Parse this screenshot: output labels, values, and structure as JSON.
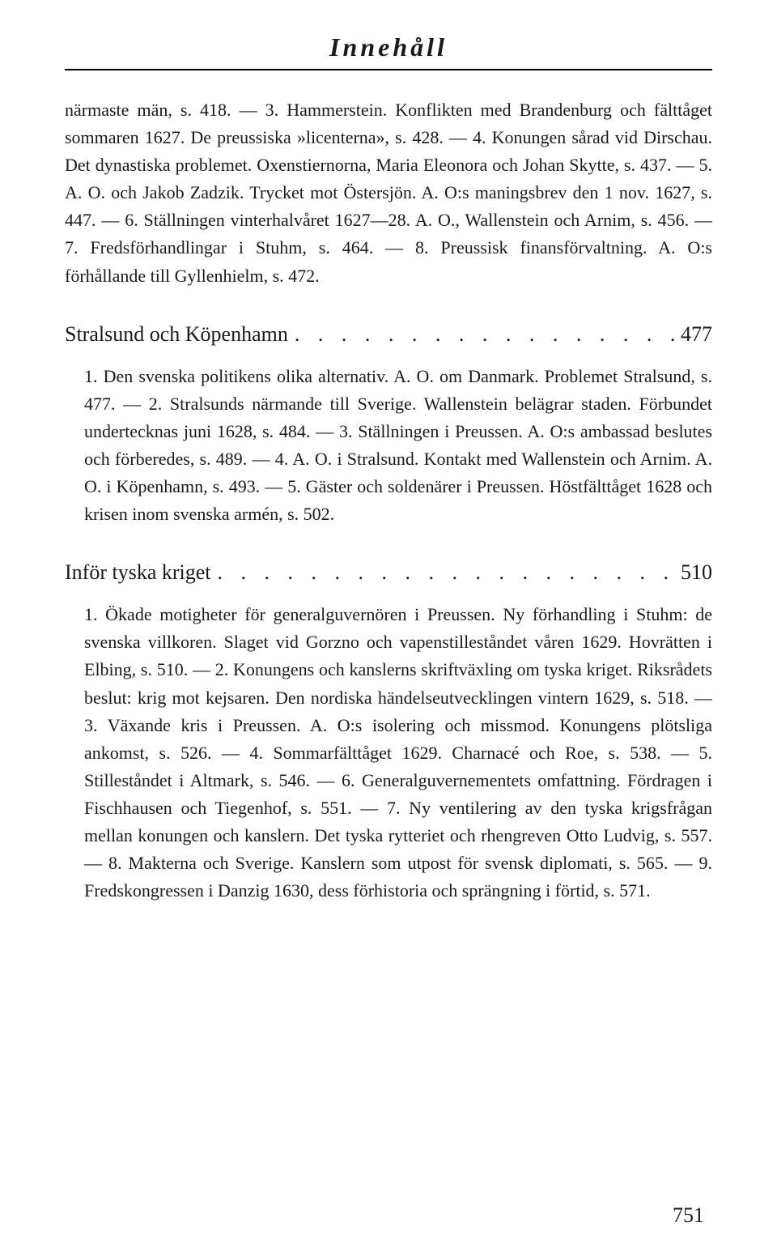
{
  "page_title": "Innehåll",
  "page_number": "751",
  "sections": {
    "first_block": "närmaste män, s. 418. — 3. Hammerstein. Konflikten med Brandenburg och fälttåget sommaren 1627. De preussiska »licenterna», s. 428. — 4. Konungen sårad vid Dirschau. Det dynastiska problemet. Oxenstiernorna, Maria Eleonora och Johan Skytte, s. 437. — 5. A. O. och Jakob Zadzik. Trycket mot Östersjön. A. O:s maningsbrev den 1 nov. 1627, s. 447. — 6. Ställningen vinterhalvåret 1627—28. A. O., Wallenstein och Arnim, s. 456. — 7. Fredsförhandlingar i Stuhm, s. 464. — 8. Preussisk finansförvaltning. A. O:s förhållande till Gyllenhielm, s. 472.",
    "stralsund": {
      "title": "Stralsund och Köpenhamn",
      "page": "477",
      "body": "1. Den svenska politikens olika alternativ. A. O. om Danmark. Problemet Stralsund, s. 477. — 2. Stralsunds närmande till Sverige. Wallenstein belägrar staden. Förbundet undertecknas juni 1628, s. 484. — 3. Ställningen i Preussen. A. O:s ambassad beslutes och förberedes, s. 489. — 4. A. O. i Stralsund. Kontakt med Wallenstein och Arnim. A. O. i Köpenhamn, s. 493. — 5. Gäster och soldenärer i Preussen. Höstfälttåget 1628 och krisen inom svenska armén, s. 502."
    },
    "infor": {
      "title": "Inför tyska kriget",
      "page": "510",
      "body": "1. Ökade motigheter för generalguvernören i Preussen. Ny förhandling i Stuhm: de svenska villkoren. Slaget vid Gorzno och vapenstilleståndet våren 1629. Hovrätten i Elbing, s. 510. — 2. Konungens och kanslerns skriftväxling om tyska kriget. Riksrådets beslut: krig mot kejsaren. Den nordiska händelseutvecklingen vintern 1629, s. 518. — 3. Växande kris i Preussen. A. O:s isolering och missmod. Konungens plötsliga ankomst, s. 526. — 4. Sommarfälttåget 1629. Charnacé och Roe, s. 538. — 5. Stilleståndet i Altmark, s. 546. — 6. Generalguvernementets omfattning. Fördragen i Fischhausen och Tiegenhof, s. 551. — 7. Ny ventilering av den tyska krigsfrågan mellan konungen och kanslern. Det tyska rytteriet och rhengreven Otto Ludvig, s. 557. — 8. Makterna och Sverige. Kanslern som utpost för svensk diplomati, s. 565. — 9. Fredskongressen i Danzig 1630, dess förhistoria och sprängning i förtid, s. 571."
    }
  },
  "leaders": ". . . . . . . . . . . . . . . . . . . . . . . . . . . . ."
}
